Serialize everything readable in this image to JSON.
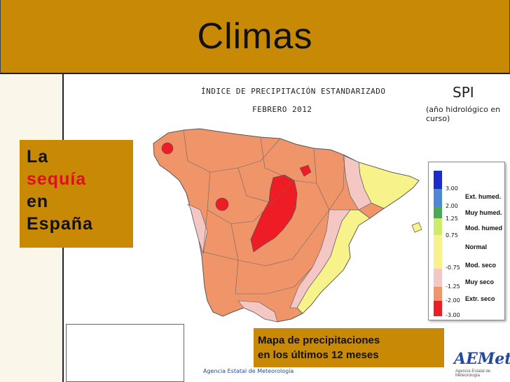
{
  "slide": {
    "title": "Climas",
    "side_label": {
      "line1": "La",
      "line2": "sequía",
      "line3": "en",
      "line4": "España"
    },
    "caption": {
      "line1": "Mapa de precipitaciones",
      "line2": "en los últimos 12 meses"
    }
  },
  "map": {
    "heading_line1": "ÍNDICE DE PRECIPITACIÓN ESTANDARIZADO",
    "heading_line2": "FEBRERO 2012",
    "index_name": "SPI",
    "index_note": "(año hidrológico en curso)",
    "agency": "Agencia Estatal de Meteorología",
    "logo": "AEMet",
    "logo_sub": "Agencia Estatal de Meteorología",
    "colors": {
      "extreme_dry": "#ee1c24",
      "very_dry": "#f0956a",
      "moderate_dry": "#f4c6c4",
      "normal": "#f7f38a",
      "moderate_wet": "#cdec6a",
      "very_wet": "#4aa957",
      "extreme_wet": "#4e87d8",
      "extreme_wet_top": "#1c2ccc"
    }
  },
  "legend": {
    "thresholds": [
      "3.00",
      "2.00",
      "1.25",
      "0.75",
      "-0.75",
      "-1.25",
      "-2.00",
      "-3.00"
    ],
    "categories": [
      "Ext. humed.",
      "Muy humed.",
      "Mod. humed",
      "Normal",
      "Mod. seco",
      "Muy seco",
      "Extr. seco"
    ]
  }
}
